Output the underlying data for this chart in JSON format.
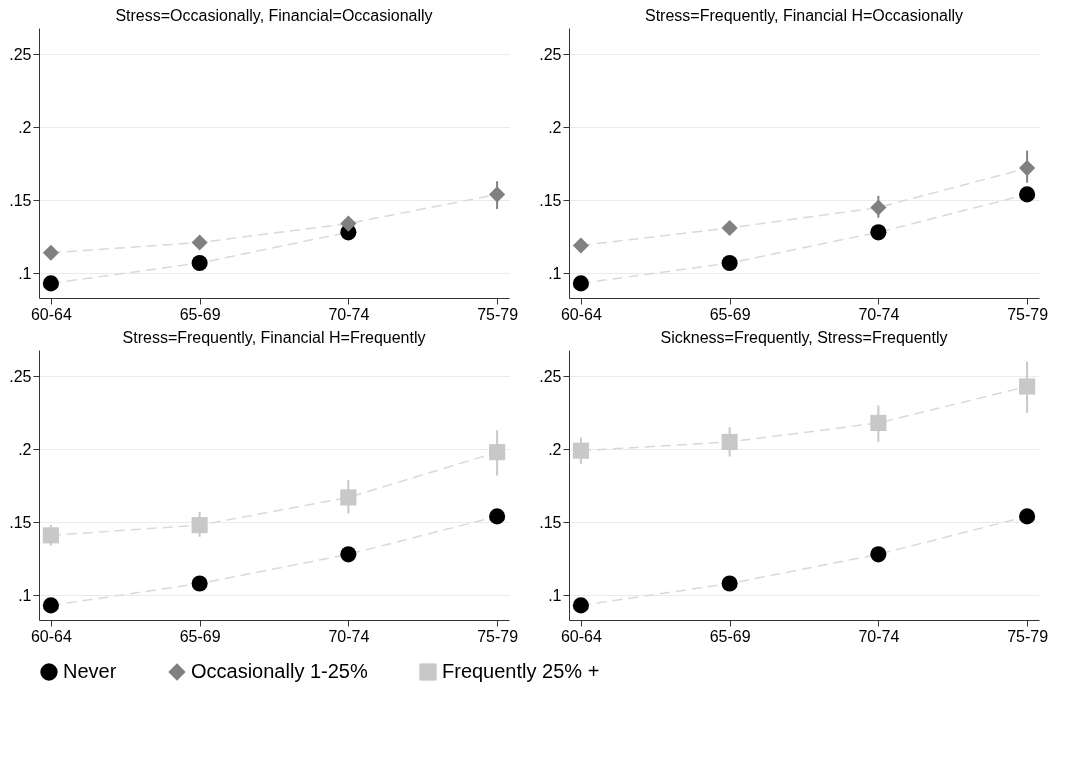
{
  "chart_data": [
    {
      "type": "line",
      "title": "Stress=Occasionally, Financial=Occasionally",
      "categories": [
        "60-64",
        "65-69",
        "70-74",
        "75-79"
      ],
      "ylim": [
        0.083,
        0.268
      ],
      "yticks": [
        {
          "value": 0.1,
          "label": ".1"
        },
        {
          "value": 0.15,
          "label": ".15"
        },
        {
          "value": 0.2,
          "label": ".2"
        },
        {
          "value": 0.25,
          "label": ".25"
        }
      ],
      "grid": "y",
      "legend": "bottom",
      "series": [
        {
          "name": "Never",
          "color": "#000000",
          "marker": "circle",
          "line_style": "dashed",
          "values": [
            0.093,
            0.107,
            0.128,
            null
          ]
        },
        {
          "name": "Occasionally 1-25%",
          "color": "#808080",
          "marker": "diamond",
          "line_style": "dashed",
          "values": [
            0.114,
            0.121,
            0.134,
            0.154
          ],
          "errors": [
            null,
            null,
            null,
            [
              0.144,
              0.163
            ]
          ]
        }
      ]
    },
    {
      "type": "line",
      "title": "Stress=Frequently, Financial H=Occasionally",
      "categories": [
        "60-64",
        "65-69",
        "70-74",
        "75-79"
      ],
      "ylim": [
        0.083,
        0.268
      ],
      "yticks": [
        {
          "value": 0.1,
          "label": ".1"
        },
        {
          "value": 0.15,
          "label": ".15"
        },
        {
          "value": 0.2,
          "label": ".2"
        },
        {
          "value": 0.25,
          "label": ".25"
        }
      ],
      "grid": "y",
      "legend": "bottom",
      "series": [
        {
          "name": "Never",
          "color": "#000000",
          "marker": "circle",
          "line_style": "dashed",
          "values": [
            0.093,
            0.107,
            0.128,
            0.154
          ]
        },
        {
          "name": "Occasionally 1-25%",
          "color": "#808080",
          "marker": "diamond",
          "line_style": "dashed",
          "values": [
            0.119,
            0.131,
            0.145,
            0.172
          ],
          "errors": [
            null,
            null,
            [
              0.138,
              0.153
            ],
            [
              0.162,
              0.184
            ]
          ]
        }
      ]
    },
    {
      "type": "line",
      "title": "Stress=Frequently, Financial H=Frequently",
      "categories": [
        "60-64",
        "65-69",
        "70-74",
        "75-79"
      ],
      "ylim": [
        0.083,
        0.268
      ],
      "yticks": [
        {
          "value": 0.1,
          "label": ".1"
        },
        {
          "value": 0.15,
          "label": ".15"
        },
        {
          "value": 0.2,
          "label": ".2"
        },
        {
          "value": 0.25,
          "label": ".25"
        }
      ],
      "grid": "y",
      "legend": "bottom",
      "series": [
        {
          "name": "Never",
          "color": "#000000",
          "marker": "circle",
          "line_style": "dashed",
          "values": [
            0.093,
            0.108,
            0.128,
            0.154
          ]
        },
        {
          "name": "Frequently 25% +",
          "color": "#c8c8c8",
          "marker": "square",
          "line_style": "dashed",
          "values": [
            0.141,
            0.148,
            0.167,
            0.198
          ],
          "errors": [
            [
              0.134,
              0.148
            ],
            [
              0.14,
              0.157
            ],
            [
              0.156,
              0.179
            ],
            [
              0.182,
              0.213
            ]
          ]
        }
      ]
    },
    {
      "type": "line",
      "title": "Sickness=Frequently, Stress=Frequently",
      "categories": [
        "60-64",
        "65-69",
        "70-74",
        "75-79"
      ],
      "ylim": [
        0.083,
        0.268
      ],
      "yticks": [
        {
          "value": 0.1,
          "label": ".1"
        },
        {
          "value": 0.15,
          "label": ".15"
        },
        {
          "value": 0.2,
          "label": ".2"
        },
        {
          "value": 0.25,
          "label": ".25"
        }
      ],
      "grid": "y",
      "legend": "bottom",
      "series": [
        {
          "name": "Never",
          "color": "#000000",
          "marker": "circle",
          "line_style": "dashed",
          "values": [
            0.093,
            0.108,
            0.128,
            0.154
          ]
        },
        {
          "name": "Frequently 25% +",
          "color": "#c8c8c8",
          "marker": "square",
          "line_style": "dashed",
          "values": [
            0.199,
            0.205,
            0.218,
            0.243
          ],
          "errors": [
            [
              0.19,
              0.208
            ],
            [
              0.195,
              0.215
            ],
            [
              0.205,
              0.23
            ],
            [
              0.225,
              0.26
            ]
          ]
        }
      ]
    }
  ]
}
